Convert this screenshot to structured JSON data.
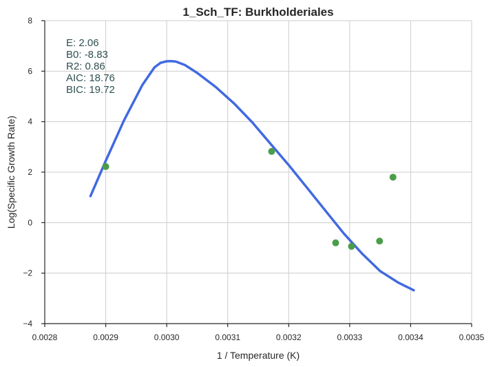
{
  "chart_data": {
    "type": "line",
    "title": "1_Sch_TF: Burkholderiales",
    "xlabel": "1 / Temperature (K)",
    "ylabel": "Log(Specific Growth Rate)",
    "xlim": [
      0.0028,
      0.0035
    ],
    "ylim": [
      -4,
      8
    ],
    "xticks": [
      0.0028,
      0.0029,
      0.003,
      0.0031,
      0.0032,
      0.0033,
      0.0034,
      0.0035
    ],
    "xtick_labels": [
      "0.0028",
      "0.0029",
      "0.0030",
      "0.0031",
      "0.0032",
      "0.0033",
      "0.0034",
      "0.0035"
    ],
    "yticks": [
      -4,
      -2,
      0,
      2,
      4,
      6,
      8
    ],
    "ytick_labels": [
      "−4",
      "−2",
      "0",
      "2",
      "4",
      "6",
      "8"
    ],
    "grid": true,
    "series": [
      {
        "kind": "line",
        "color": "#4169e1",
        "x": [
          0.002875,
          0.0029,
          0.00293,
          0.00296,
          0.00298,
          0.00299,
          0.003,
          0.003007,
          0.003015,
          0.00303,
          0.00305,
          0.00308,
          0.00311,
          0.00314,
          0.00317,
          0.0032,
          0.00323,
          0.00326,
          0.00329,
          0.00332,
          0.00335,
          0.00338,
          0.003405
        ],
        "y": [
          1.05,
          2.45,
          4.05,
          5.45,
          6.15,
          6.33,
          6.39,
          6.4,
          6.38,
          6.24,
          5.93,
          5.38,
          4.73,
          3.98,
          3.13,
          2.28,
          1.38,
          0.48,
          -0.42,
          -1.22,
          -1.92,
          -2.38,
          -2.68
        ]
      },
      {
        "kind": "scatter",
        "color": "#4a9e4a",
        "x": [
          0.0029,
          0.003172,
          0.003277,
          0.003303,
          0.003349,
          0.003371
        ],
        "y": [
          2.22,
          2.82,
          -0.8,
          -0.94,
          -0.73,
          1.8
        ]
      }
    ],
    "annotations": [
      {
        "label": "E:",
        "value": "2.06"
      },
      {
        "label": "B0:",
        "value": "-8.83"
      },
      {
        "label": "R2:",
        "value": "0.86"
      },
      {
        "label": "AIC:",
        "value": "18.76"
      },
      {
        "label": "BIC:",
        "value": "19.72"
      }
    ]
  }
}
